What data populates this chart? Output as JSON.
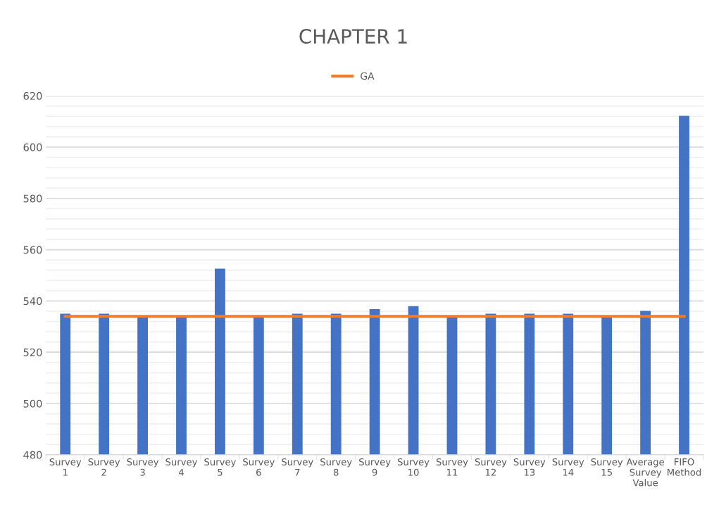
{
  "chart_data": {
    "type": "bar",
    "title": "CHAPTER 1",
    "categories": [
      "Survey\n1",
      "Survey\n2",
      "Survey\n3",
      "Survey\n4",
      "Survey\n5",
      "Survey\n6",
      "Survey\n7",
      "Survey\n8",
      "Survey\n9",
      "Survey\n10",
      "Survey\n11",
      "Survey\n12",
      "Survey\n13",
      "Survey\n14",
      "Survey\n15",
      "Average\nSurvey\nValue",
      "FIFO\nMethod"
    ],
    "series": [
      {
        "color": "#4472c4",
        "values": [
          535,
          535,
          534,
          534,
          552.6,
          534,
          535,
          535,
          536.8,
          538,
          534,
          535,
          535,
          535,
          534,
          536.1,
          612.2
        ]
      },
      {
        "type": "line",
        "name": "GA",
        "color": "#ed7d31",
        "values": [
          534,
          534,
          534,
          534,
          534,
          534,
          534,
          534,
          534,
          534,
          534,
          534,
          534,
          534,
          534,
          534,
          534
        ]
      }
    ],
    "ylim": [
      480,
      620
    ],
    "yticks": [
      480,
      {
        "value": 484,
        "label": null
      },
      {
        "value": 488,
        "label": null
      },
      {
        "value": 492,
        "label": null
      },
      {
        "value": 496,
        "label": null
      },
      500,
      {
        "value": 504,
        "label": null
      },
      {
        "value": 508,
        "label": null
      },
      {
        "value": 512,
        "label": null
      },
      {
        "value": 516,
        "label": null
      },
      520,
      {
        "value": 524,
        "label": null
      },
      {
        "value": 528,
        "label": null
      },
      {
        "value": 532,
        "label": null
      },
      {
        "value": 536,
        "label": null
      },
      540,
      {
        "value": 544,
        "label": null
      },
      {
        "value": 548,
        "label": null
      },
      {
        "value": 552,
        "label": null
      },
      {
        "value": 556,
        "label": null
      },
      560,
      {
        "value": 564,
        "label": null
      },
      {
        "value": 568,
        "label": null
      },
      {
        "value": 572,
        "label": null
      },
      {
        "value": 576,
        "label": null
      },
      580,
      {
        "value": 584,
        "label": null
      },
      {
        "value": 588,
        "label": null
      },
      {
        "value": 592,
        "label": null
      },
      {
        "value": 596,
        "label": null
      },
      600,
      {
        "value": 604,
        "label": null
      },
      {
        "value": 608,
        "label": null
      },
      {
        "value": 612,
        "label": null
      },
      {
        "value": 616,
        "label": null
      },
      620
    ],
    "grid": "y",
    "legend": "top"
  }
}
